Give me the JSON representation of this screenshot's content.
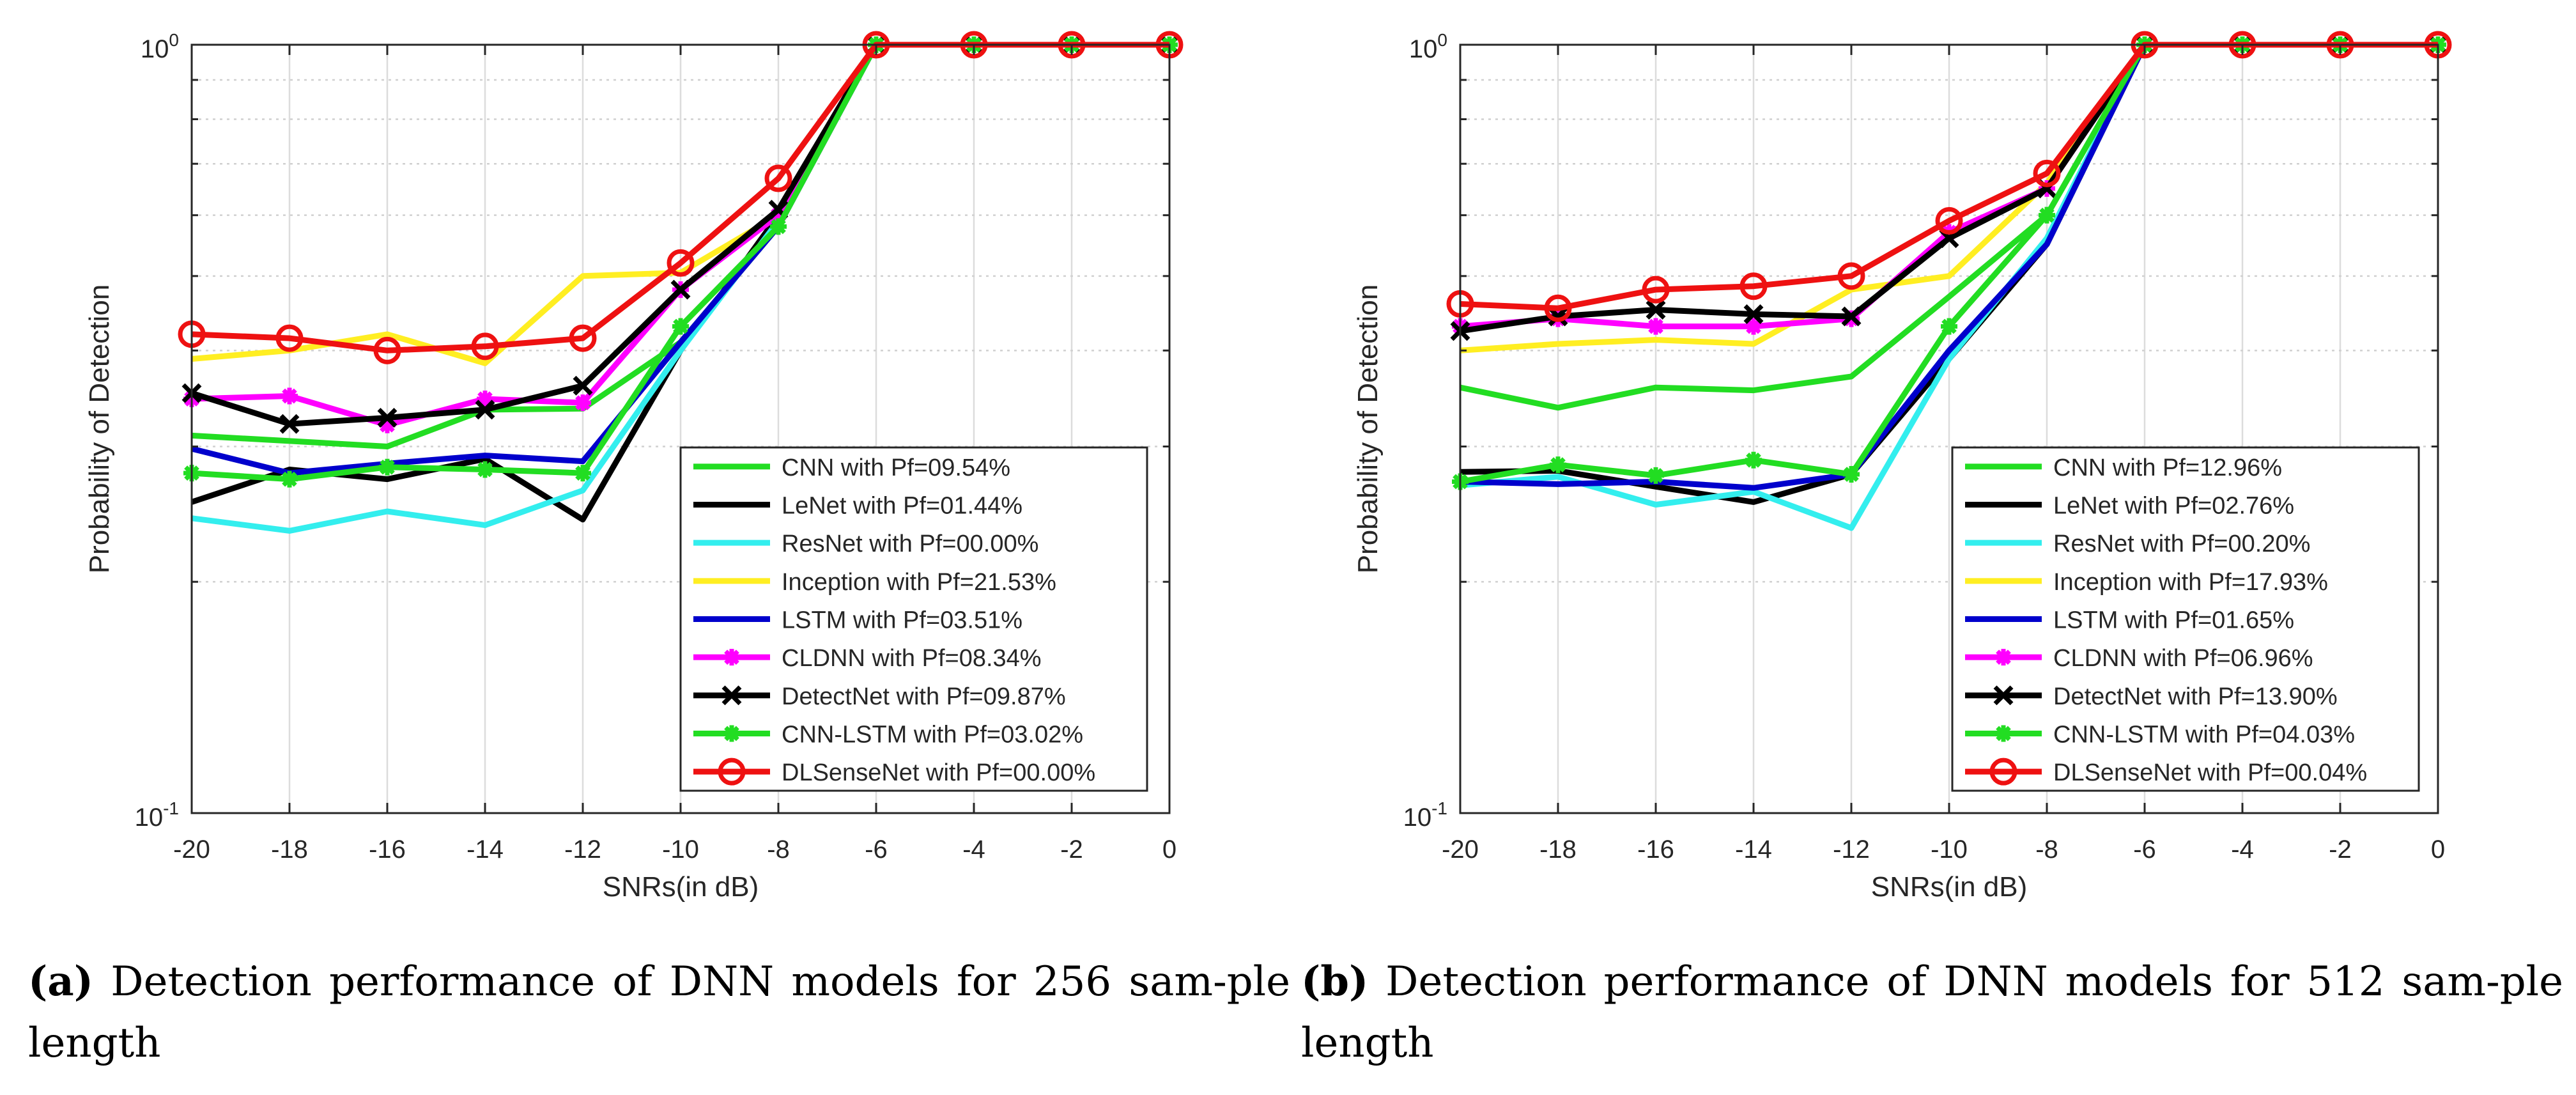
{
  "chart_data": [
    {
      "type": "line",
      "ylog": true,
      "xlabel": "SNRs(in dB)",
      "ylabel": "Probability of Detection",
      "x": [
        -20,
        -18,
        -16,
        -14,
        -12,
        -10,
        -8,
        -6,
        -4,
        -2,
        0
      ],
      "xlim": [
        -20,
        0
      ],
      "ylim": [
        0.1,
        1
      ],
      "xticks": [
        "-20",
        "-18",
        "-16",
        "-14",
        "-12",
        "-10",
        "-8",
        "-6",
        "-4",
        "-2",
        "0"
      ],
      "yticks": [
        {
          "base": "10",
          "exp": "-1"
        },
        {
          "base": "10",
          "exp": "0"
        }
      ],
      "grid": true,
      "legend_position": "bottom-right",
      "caption_label": "(a)",
      "caption_text": "Detection performance of DNN models for 256 sam-ple length",
      "series": [
        {
          "name": "CNN with Pf=09.54%",
          "color": "#22dd22",
          "marker": "none",
          "values": [
            0.31,
            0.305,
            0.3,
            0.335,
            0.336,
            0.41,
            0.58,
            1,
            1,
            1,
            1
          ]
        },
        {
          "name": "LeNet with Pf=01.44%",
          "color": "#000000",
          "marker": "none",
          "values": [
            0.254,
            0.28,
            0.272,
            0.289,
            0.241,
            0.4,
            0.6,
            1,
            1,
            1,
            1
          ]
        },
        {
          "name": "ResNet with Pf=00.00%",
          "color": "#33eeee",
          "marker": "none",
          "values": [
            0.242,
            0.233,
            0.247,
            0.237,
            0.263,
            0.4,
            0.59,
            1,
            1,
            1,
            1
          ]
        },
        {
          "name": "Inception with Pf=21.53%",
          "color": "#ffee22",
          "marker": "none",
          "values": [
            0.39,
            0.4,
            0.42,
            0.385,
            0.5,
            0.505,
            0.6,
            1,
            1,
            1,
            1
          ]
        },
        {
          "name": "LSTM with Pf=03.51%",
          "color": "#0000cc",
          "marker": "none",
          "values": [
            0.298,
            0.277,
            0.285,
            0.292,
            0.287,
            0.41,
            0.58,
            1,
            1,
            1,
            1
          ]
        },
        {
          "name": "CLDNN with Pf=08.34%",
          "color": "#ff00ff",
          "marker": "asterisk",
          "values": [
            0.346,
            0.349,
            0.32,
            0.346,
            0.342,
            0.48,
            0.6,
            1,
            1,
            1,
            1
          ]
        },
        {
          "name": "DetectNet with Pf=09.87%",
          "color": "#000000",
          "marker": "x",
          "values": [
            0.352,
            0.321,
            0.327,
            0.335,
            0.36,
            0.48,
            0.61,
            1,
            1,
            1,
            1
          ]
        },
        {
          "name": "CNN-LSTM with Pf=03.02%",
          "color": "#22dd22",
          "marker": "asterisk",
          "values": [
            0.277,
            0.272,
            0.282,
            0.28,
            0.277,
            0.43,
            0.58,
            1,
            1,
            1,
            1
          ]
        },
        {
          "name": "DLSenseNet with Pf=00.00%",
          "color": "#ee1111",
          "marker": "circle",
          "values": [
            0.42,
            0.415,
            0.4,
            0.405,
            0.415,
            0.52,
            0.67,
            1,
            1,
            1,
            1
          ]
        }
      ]
    },
    {
      "type": "line",
      "ylog": true,
      "xlabel": "SNRs(in dB)",
      "ylabel": "Probability of Detection",
      "x": [
        -20,
        -18,
        -16,
        -14,
        -12,
        -10,
        -8,
        -6,
        -4,
        -2,
        0
      ],
      "xlim": [
        -20,
        0
      ],
      "ylim": [
        0.1,
        1
      ],
      "xticks": [
        "-20",
        "-18",
        "-16",
        "-14",
        "-12",
        "-10",
        "-8",
        "-6",
        "-4",
        "-2",
        "0"
      ],
      "yticks": [
        {
          "base": "10",
          "exp": "-1"
        },
        {
          "base": "10",
          "exp": "0"
        }
      ],
      "grid": true,
      "legend_position": "bottom-right",
      "caption_label": "(b)",
      "caption_text": "Detection performance of DNN models for 512 sam-ple length",
      "series": [
        {
          "name": "CNN with Pf=12.96%",
          "color": "#22dd22",
          "marker": "none",
          "values": [
            0.358,
            0.337,
            0.358,
            0.355,
            0.37,
            0.47,
            0.6,
            1,
            1,
            1,
            1
          ]
        },
        {
          "name": "LeNet with Pf=02.76%",
          "color": "#000000",
          "marker": "none",
          "values": [
            0.278,
            0.279,
            0.266,
            0.254,
            0.276,
            0.39,
            0.55,
            1,
            1,
            1,
            1
          ]
        },
        {
          "name": "ResNet with Pf=00.20%",
          "color": "#33eeee",
          "marker": "none",
          "values": [
            0.267,
            0.274,
            0.252,
            0.262,
            0.235,
            0.39,
            0.56,
            1,
            1,
            1,
            1
          ]
        },
        {
          "name": "Inception with Pf=17.93%",
          "color": "#ffee22",
          "marker": "none",
          "values": [
            0.4,
            0.408,
            0.413,
            0.408,
            0.48,
            0.5,
            0.66,
            1,
            1,
            1,
            1
          ]
        },
        {
          "name": "LSTM with Pf=01.65%",
          "color": "#0000cc",
          "marker": "none",
          "values": [
            0.27,
            0.268,
            0.27,
            0.265,
            0.276,
            0.4,
            0.55,
            1,
            1,
            1,
            1
          ]
        },
        {
          "name": "CLDNN with Pf=06.96%",
          "color": "#ff00ff",
          "marker": "asterisk",
          "values": [
            0.43,
            0.44,
            0.43,
            0.43,
            0.44,
            0.57,
            0.65,
            1,
            1,
            1,
            1
          ]
        },
        {
          "name": "DetectNet with Pf=13.90%",
          "color": "#000000",
          "marker": "x",
          "values": [
            0.424,
            0.443,
            0.452,
            0.446,
            0.443,
            0.56,
            0.65,
            1,
            1,
            1,
            1
          ]
        },
        {
          "name": "CNN-LSTM with Pf=04.03%",
          "color": "#22dd22",
          "marker": "asterisk",
          "values": [
            0.27,
            0.284,
            0.275,
            0.288,
            0.276,
            0.43,
            0.6,
            1,
            1,
            1,
            1
          ]
        },
        {
          "name": "DLSenseNet with Pf=00.04%",
          "color": "#ee1111",
          "marker": "circle",
          "values": [
            0.46,
            0.454,
            0.48,
            0.485,
            0.5,
            0.59,
            0.68,
            1,
            1,
            1,
            1
          ]
        }
      ]
    }
  ]
}
